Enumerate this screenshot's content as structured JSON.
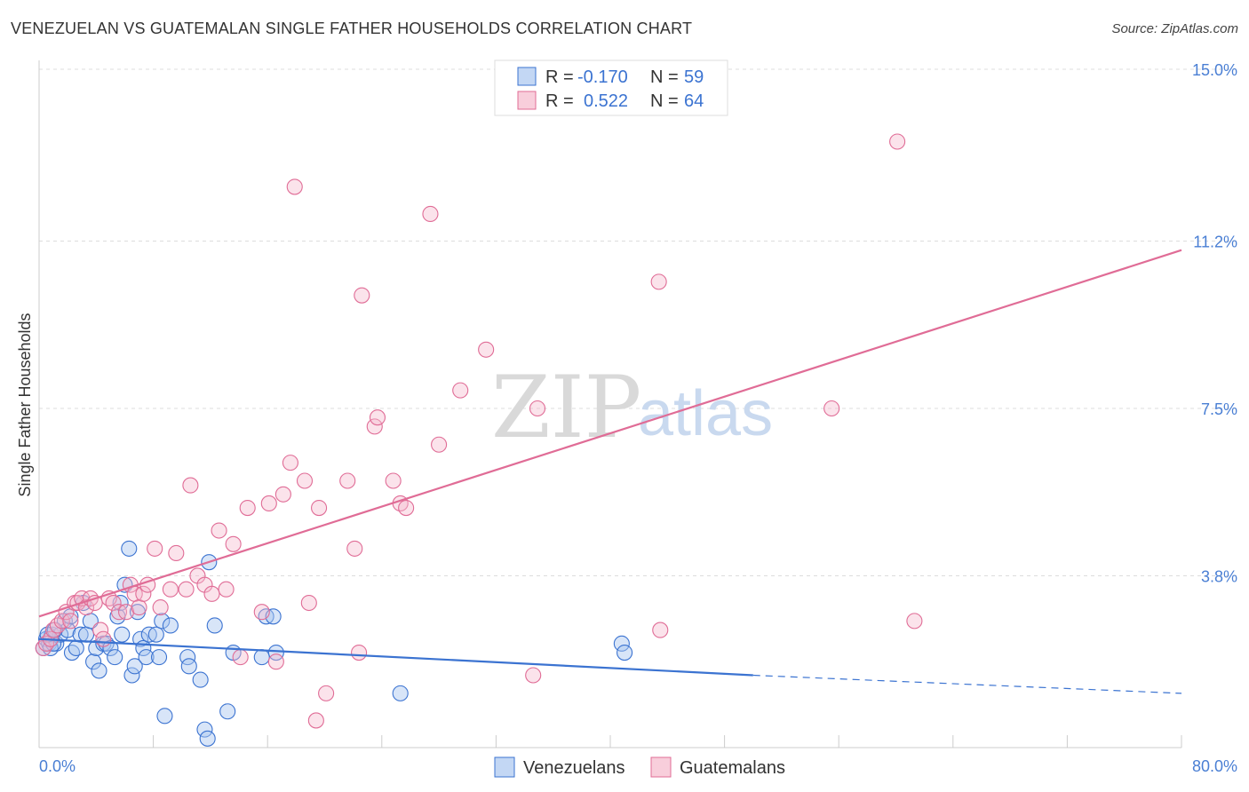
{
  "title": "VENEZUELAN VS GUATEMALAN SINGLE FATHER HOUSEHOLDS CORRELATION CHART",
  "source": "Source: ZipAtlas.com",
  "watermark": {
    "zip": "ZIP",
    "atlas": "atlas"
  },
  "colors": {
    "blue": "#3b73d1",
    "blue_fill": "#a9c6f0",
    "pink": "#e06c96",
    "pink_fill": "#f5b9cc",
    "grid": "#dddddd",
    "tick_label": "#4a7fd4"
  },
  "legend": {
    "rows": [
      {
        "r_label": "R =",
        "r_value": "-0.170",
        "n_label": "N =",
        "n_value": "59"
      },
      {
        "r_label": "R =",
        "r_value": "0.522",
        "n_label": "N =",
        "n_value": "64"
      }
    ]
  },
  "chart_data": {
    "type": "scatter",
    "title": "VENEZUELAN VS GUATEMALAN SINGLE FATHER HOUSEHOLDS CORRELATION CHART",
    "xlabel": "",
    "ylabel": "Single Father Households",
    "xlim": [
      0,
      80
    ],
    "ylim": [
      0,
      15
    ],
    "x_tick_labels": [
      "0.0%",
      "80.0%"
    ],
    "y_ticks": [
      3.8,
      7.5,
      11.2,
      15.0
    ],
    "y_tick_labels": [
      "3.8%",
      "7.5%",
      "11.2%",
      "15.0%"
    ],
    "series": [
      {
        "name": "Venezuelans",
        "color": "#3b73d1",
        "r": -0.17,
        "n": 59,
        "trend": {
          "x": [
            0,
            50
          ],
          "y": [
            2.4,
            1.6
          ],
          "dashed_to": [
            80,
            1.2
          ]
        },
        "points": [
          [
            0.3,
            2.2
          ],
          [
            0.5,
            2.4
          ],
          [
            0.7,
            2.3
          ],
          [
            0.9,
            2.5
          ],
          [
            1.2,
            2.3
          ],
          [
            1.5,
            2.5
          ],
          [
            1.8,
            2.8
          ],
          [
            2.0,
            2.6
          ],
          [
            2.2,
            2.9
          ],
          [
            2.3,
            2.1
          ],
          [
            2.6,
            2.2
          ],
          [
            2.9,
            2.5
          ],
          [
            3.1,
            3.2
          ],
          [
            3.3,
            2.5
          ],
          [
            3.6,
            2.8
          ],
          [
            3.8,
            1.9
          ],
          [
            4.0,
            2.2
          ],
          [
            4.2,
            1.7
          ],
          [
            4.5,
            2.3
          ],
          [
            4.7,
            2.3
          ],
          [
            5.0,
            2.2
          ],
          [
            5.3,
            2.0
          ],
          [
            5.5,
            2.9
          ],
          [
            5.7,
            3.2
          ],
          [
            5.8,
            2.5
          ],
          [
            6.0,
            3.6
          ],
          [
            6.3,
            4.4
          ],
          [
            6.5,
            1.6
          ],
          [
            6.7,
            1.8
          ],
          [
            6.9,
            3.0
          ],
          [
            7.1,
            2.4
          ],
          [
            7.3,
            2.2
          ],
          [
            7.5,
            2.0
          ],
          [
            7.7,
            2.5
          ],
          [
            8.2,
            2.5
          ],
          [
            8.4,
            2.0
          ],
          [
            8.6,
            2.8
          ],
          [
            8.8,
            0.7
          ],
          [
            9.2,
            2.7
          ],
          [
            10.4,
            2.0
          ],
          [
            10.5,
            1.8
          ],
          [
            11.3,
            1.5
          ],
          [
            11.6,
            0.4
          ],
          [
            11.8,
            0.2
          ],
          [
            11.9,
            4.1
          ],
          [
            12.3,
            2.7
          ],
          [
            13.2,
            0.8
          ],
          [
            13.6,
            2.1
          ],
          [
            15.6,
            2.0
          ],
          [
            15.9,
            2.9
          ],
          [
            16.4,
            2.9
          ],
          [
            16.6,
            2.1
          ],
          [
            25.3,
            1.2
          ],
          [
            40.8,
            2.3
          ],
          [
            41.0,
            2.1
          ],
          [
            0.8,
            2.2
          ],
          [
            1.0,
            2.3
          ],
          [
            0.6,
            2.5
          ],
          [
            1.1,
            2.6
          ]
        ]
      },
      {
        "name": "Guatemalans",
        "color": "#e06c96",
        "r": 0.522,
        "n": 64,
        "trend": {
          "x": [
            0,
            80
          ],
          "y": [
            2.9,
            11.0
          ]
        },
        "points": [
          [
            0.3,
            2.2
          ],
          [
            0.5,
            2.3
          ],
          [
            0.8,
            2.4
          ],
          [
            1.0,
            2.6
          ],
          [
            1.3,
            2.7
          ],
          [
            1.6,
            2.8
          ],
          [
            1.9,
            3.0
          ],
          [
            2.2,
            2.8
          ],
          [
            2.5,
            3.2
          ],
          [
            2.7,
            3.2
          ],
          [
            3.0,
            3.3
          ],
          [
            3.3,
            3.1
          ],
          [
            3.6,
            3.3
          ],
          [
            3.9,
            3.2
          ],
          [
            4.3,
            2.6
          ],
          [
            4.5,
            2.4
          ],
          [
            4.9,
            3.3
          ],
          [
            5.2,
            3.2
          ],
          [
            5.6,
            3.0
          ],
          [
            6.1,
            3.0
          ],
          [
            6.4,
            3.6
          ],
          [
            6.7,
            3.4
          ],
          [
            7.0,
            3.1
          ],
          [
            7.3,
            3.4
          ],
          [
            7.6,
            3.6
          ],
          [
            8.1,
            4.4
          ],
          [
            8.5,
            3.1
          ],
          [
            9.2,
            3.5
          ],
          [
            9.6,
            4.3
          ],
          [
            10.3,
            3.5
          ],
          [
            10.6,
            5.8
          ],
          [
            11.1,
            3.8
          ],
          [
            11.6,
            3.6
          ],
          [
            12.1,
            3.4
          ],
          [
            12.6,
            4.8
          ],
          [
            13.1,
            3.5
          ],
          [
            13.6,
            4.5
          ],
          [
            14.1,
            2.0
          ],
          [
            14.6,
            5.3
          ],
          [
            15.6,
            3.0
          ],
          [
            16.1,
            5.4
          ],
          [
            16.6,
            1.9
          ],
          [
            17.1,
            5.6
          ],
          [
            17.6,
            6.3
          ],
          [
            17.9,
            12.4
          ],
          [
            18.6,
            5.9
          ],
          [
            18.9,
            3.2
          ],
          [
            19.4,
            0.6
          ],
          [
            19.6,
            5.3
          ],
          [
            20.1,
            1.2
          ],
          [
            21.6,
            5.9
          ],
          [
            22.1,
            4.4
          ],
          [
            22.4,
            2.1
          ],
          [
            22.6,
            10.0
          ],
          [
            23.5,
            7.1
          ],
          [
            23.7,
            7.3
          ],
          [
            24.8,
            5.9
          ],
          [
            25.3,
            5.4
          ],
          [
            25.7,
            5.3
          ],
          [
            27.4,
            11.8
          ],
          [
            28.0,
            6.7
          ],
          [
            29.5,
            7.9
          ],
          [
            31.3,
            8.8
          ],
          [
            34.9,
            7.5
          ]
        ],
        "extra_points": [
          [
            34.6,
            1.6
          ],
          [
            43.5,
            2.6
          ],
          [
            43.4,
            10.3
          ],
          [
            55.5,
            7.5
          ],
          [
            60.1,
            13.4
          ],
          [
            61.3,
            2.8
          ]
        ]
      }
    ],
    "legend_position": "bottom-center"
  },
  "bottom_legend": [
    {
      "label": "Venezuelans"
    },
    {
      "label": "Guatemalans"
    }
  ]
}
